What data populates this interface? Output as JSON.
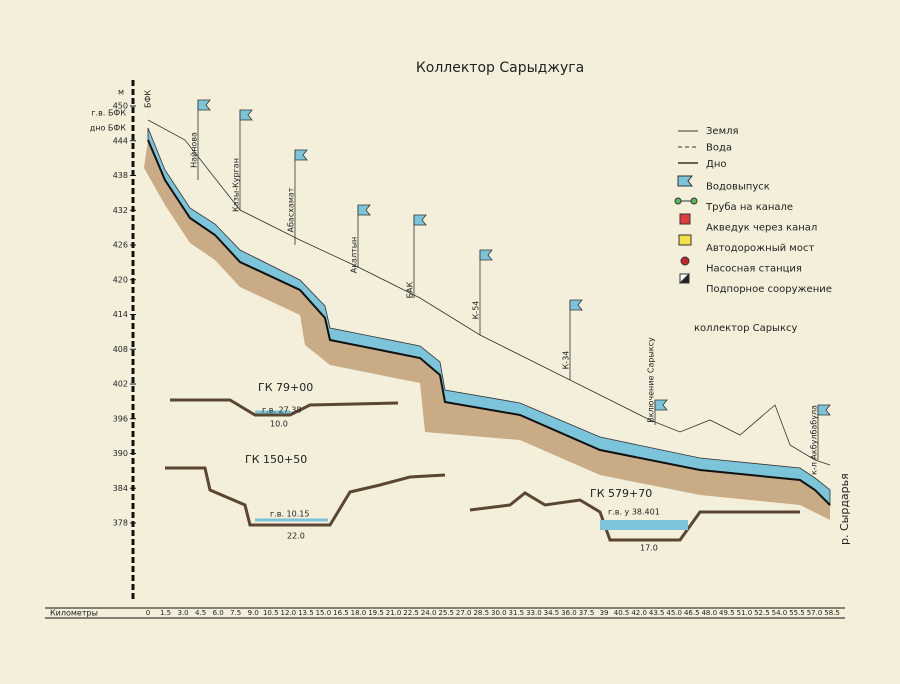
{
  "title": "Коллектор Сарыджуга",
  "y_axis": {
    "unit": "м",
    "labels": [
      450,
      444,
      438,
      432,
      426,
      420,
      414,
      408,
      402,
      396,
      390,
      384,
      378
    ]
  },
  "left_labels": {
    "canal": "БФК",
    "water": "г.в. БФК",
    "bottom": "дно БФК"
  },
  "x_axis": {
    "label": "Километры",
    "labels": [
      "0",
      "1.5",
      "3.0",
      "4.5",
      "6.0",
      "7.5",
      "9.0",
      "10.5",
      "12.0",
      "13.5",
      "15.0",
      "16.5",
      "18.0",
      "19.5",
      "21.0",
      "22.5",
      "24.0",
      "25.5",
      "27.0",
      "28.5",
      "30.0",
      "31.5",
      "33.0",
      "34.5",
      "36.0",
      "37.5",
      "39",
      "40.5",
      "42.0",
      "43.5",
      "45.0",
      "46.5",
      "48.0",
      "49.5",
      "51.0",
      "52.5",
      "54.0",
      "55.5",
      "57.0",
      "58.5"
    ]
  },
  "legend": [
    "Земля",
    "Вода",
    "Дно",
    "Водовыпуск",
    "Труба на канале",
    "Акведук через канал",
    "Автодорожный мост",
    "Насосная станция",
    "Подпорное сооружение"
  ],
  "structures": [
    "Найнова",
    "Казы-Курган",
    "Абасхамат",
    "Акалтын",
    "БАК",
    "К-54",
    "К-34",
    "Включение Сарыксу",
    "к-л Акбулбабула"
  ],
  "annotations": {
    "tributary": "коллектор Сарыксу",
    "river": "р. Сырдарья"
  },
  "sections": [
    {
      "title": "ГК 79+00",
      "water_level": "г.в. 27.38",
      "width": "10.0"
    },
    {
      "title": "ГК 150+50",
      "water_level": "г.в. 10.15",
      "width": "22.0"
    },
    {
      "title": "ГК 579+70",
      "water_level": "г.в. у 38.401",
      "width": "17.0"
    }
  ]
}
